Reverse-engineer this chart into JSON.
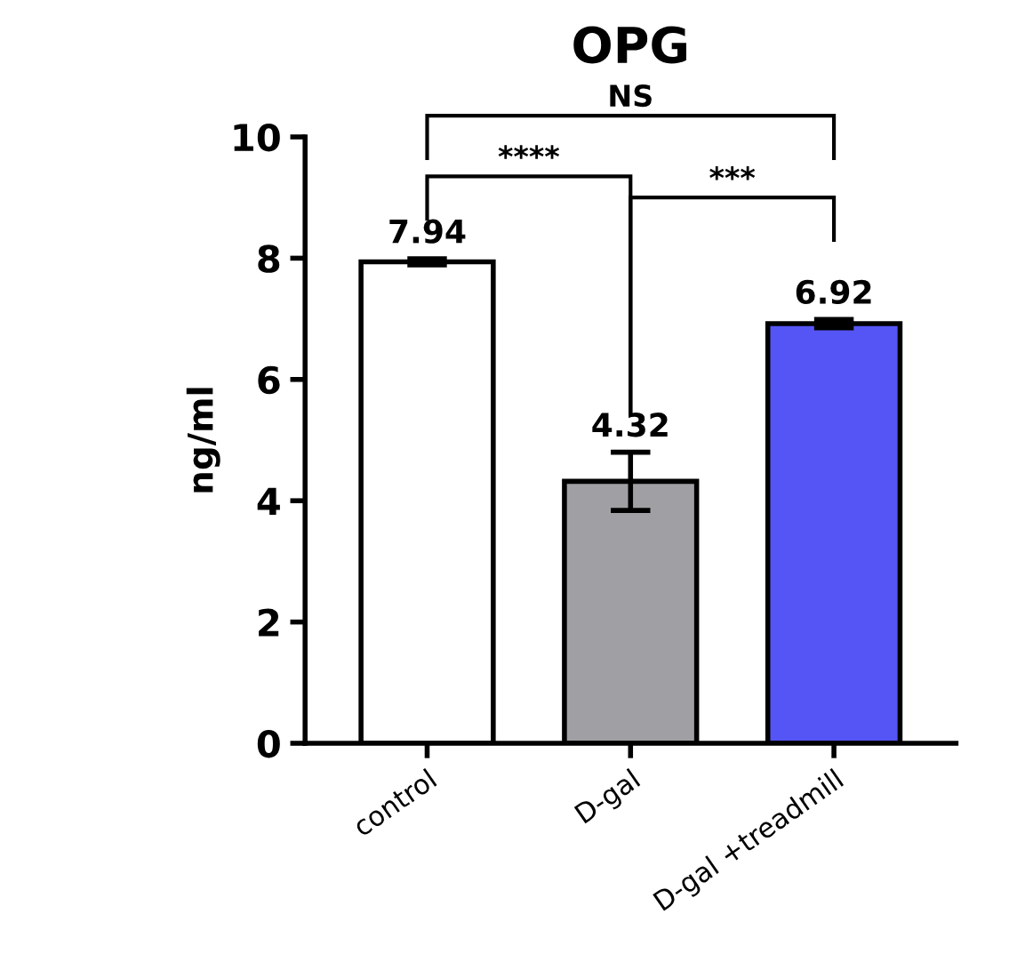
{
  "chart_data": {
    "type": "bar",
    "title": "OPG",
    "ylabel": "ng/ml",
    "categories": [
      "control",
      "D-gal",
      "D-gal +treadmill"
    ],
    "values": [
      7.94,
      4.32,
      6.92
    ],
    "colors": [
      "#ffffff",
      "#a0a0a4",
      "#5555f5"
    ],
    "errors": [
      0.05,
      0.48,
      0.07
    ],
    "data_labels": true,
    "ylim": [
      0,
      10
    ],
    "yticks": [
      0,
      2,
      4,
      6,
      8,
      10
    ],
    "grid": false,
    "legend": false,
    "annotations": [
      "NS",
      "****",
      "***"
    ]
  }
}
